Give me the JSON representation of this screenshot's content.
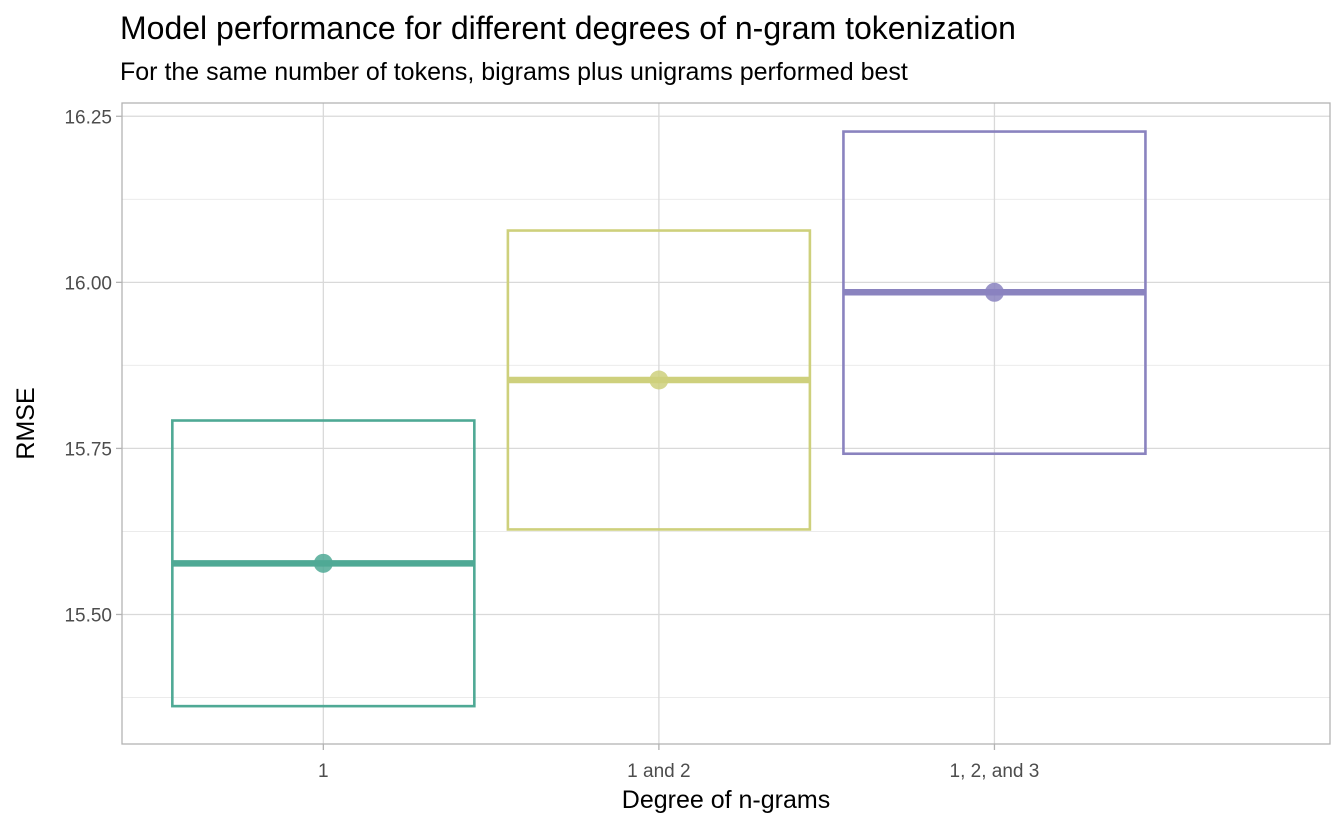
{
  "chart_data": {
    "type": "crossbar",
    "title": "Model performance for different degrees of n-gram tokenization",
    "subtitle": "For the same number of tokens, bigrams plus unigrams performed best",
    "xlabel": "Degree of n-grams",
    "ylabel": "RMSE",
    "ylim": [
      15.305,
      16.27
    ],
    "yticks": [
      15.5,
      15.75,
      16.0,
      16.25
    ],
    "ytick_labels": [
      "15.50",
      "15.75",
      "16.00",
      "16.25"
    ],
    "categories": [
      "1",
      "1 and 2",
      "1, 2, and 3"
    ],
    "series": [
      {
        "category": "1",
        "mean": 15.577,
        "lower": 15.362,
        "upper": 15.792,
        "color": "#4fa995"
      },
      {
        "category": "1 and 2",
        "mean": 15.853,
        "lower": 15.628,
        "upper": 16.078,
        "color": "#ced07c"
      },
      {
        "category": "1, 2, and 3",
        "mean": 15.985,
        "lower": 15.742,
        "upper": 16.227,
        "color": "#8a83bf"
      }
    ],
    "grid": true,
    "legend": "none"
  }
}
